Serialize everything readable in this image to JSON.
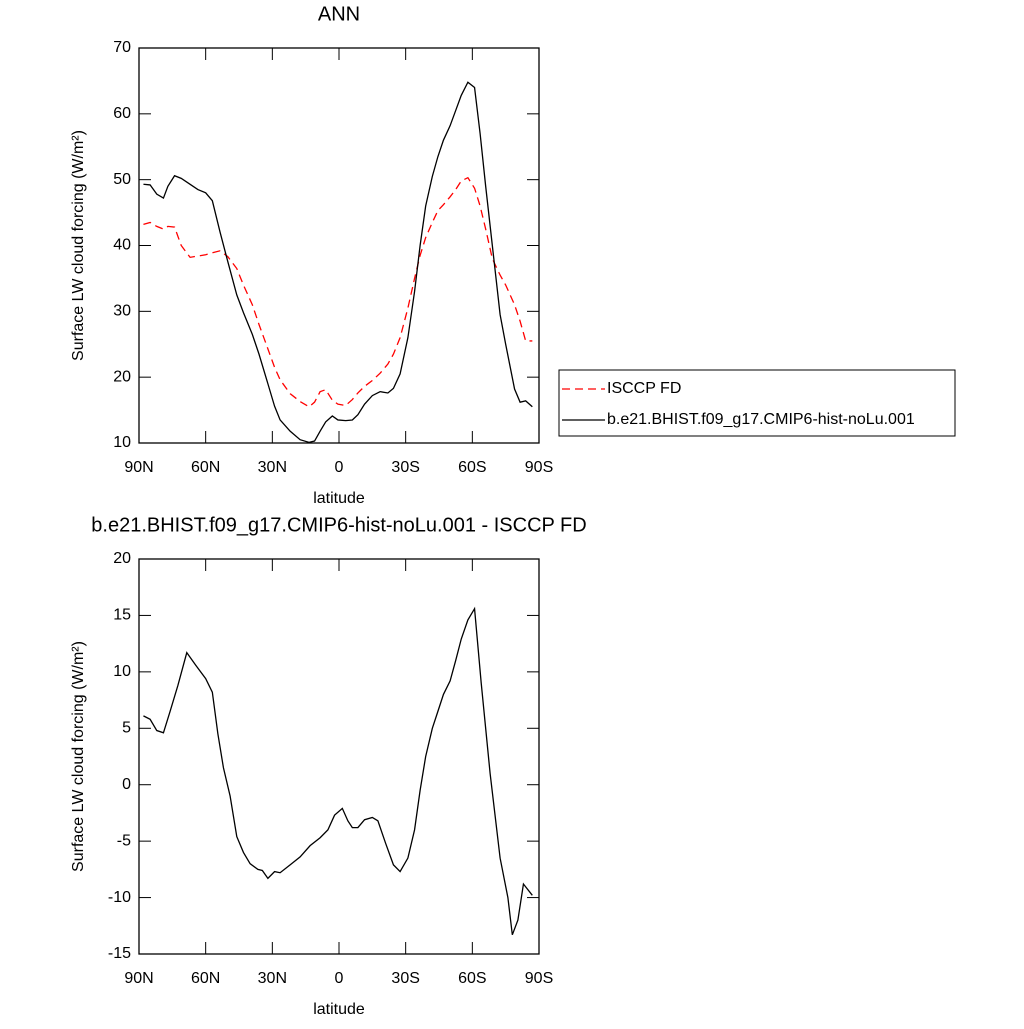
{
  "chart_data": [
    {
      "type": "line",
      "title": "ANN",
      "xlabel": "latitude",
      "ylabel": "Surface LW cloud forcing (W/m²)",
      "xlim": [
        90,
        -90
      ],
      "xticks": [
        {
          "value": 90,
          "label": "90N"
        },
        {
          "value": 60,
          "label": "60N"
        },
        {
          "value": 30,
          "label": "30N"
        },
        0,
        {
          "value": -30,
          "label": "30S"
        },
        {
          "value": -60,
          "label": "60S"
        },
        {
          "value": -90,
          "label": "90S"
        }
      ],
      "ylim": [
        10,
        70
      ],
      "yticks": [
        10,
        20,
        30,
        40,
        50,
        60,
        70
      ],
      "legend": "right",
      "x": [
        88,
        85,
        82,
        79,
        77,
        74,
        71,
        67,
        63.5,
        60,
        57,
        53.5,
        50,
        46,
        43,
        39,
        36,
        32,
        29,
        26.5,
        22,
        17.5,
        13.5,
        11,
        8.5,
        6,
        3,
        0.5,
        -3,
        -6,
        -8.5,
        -11.5,
        -15,
        -18.5,
        -22,
        -24.5,
        -27.5,
        -31,
        -34,
        -36.5,
        -39,
        -42,
        -44.5,
        -47,
        -50,
        -52.5,
        -55,
        -58,
        -61,
        -63.5,
        -66,
        -69,
        -72.5,
        -75,
        -79,
        -81.5,
        -84,
        -87
      ],
      "series": [
        {
          "name": "ISCCP FD",
          "color": "#ff0000",
          "dashed": true,
          "values": [
            43.2,
            43.5,
            42.9,
            42.5,
            42.9,
            42.8,
            40,
            38.2,
            38.4,
            38.6,
            38.9,
            39.2,
            38.3,
            36.5,
            34,
            31,
            28,
            24.3,
            21.5,
            19.6,
            17.5,
            16.3,
            15.5,
            16.2,
            17.8,
            18.1,
            16.5,
            15.9,
            15.7,
            16.6,
            17.6,
            18.6,
            19.5,
            20.6,
            22,
            23.5,
            26,
            30.5,
            35,
            38.5,
            41.2,
            43.5,
            45.3,
            46.2,
            47.4,
            48.5,
            49.8,
            50.3,
            48.7,
            46,
            42.5,
            38,
            35.5,
            34,
            31,
            28.5,
            25.5,
            25.5
          ]
        },
        {
          "name": "b.e21.BHIST.f09_g17.CMIP6-hist-noLu.001",
          "color": "#000000",
          "dashed": false,
          "values": [
            49.3,
            49.2,
            47.8,
            47.2,
            49,
            50.6,
            50.2,
            49.3,
            48.5,
            48,
            46.8,
            42,
            37.5,
            32.5,
            29.8,
            26.5,
            23.5,
            19,
            15.6,
            13.5,
            11.8,
            10.5,
            10.1,
            10.3,
            11.8,
            13.2,
            14.1,
            13.5,
            13.4,
            13.5,
            14.3,
            15.9,
            17.2,
            17.8,
            17.6,
            18.3,
            20.5,
            26,
            33,
            40,
            46,
            50.5,
            53.5,
            56,
            58.2,
            60.5,
            62.8,
            64.8,
            64,
            57,
            49,
            40,
            29.5,
            25,
            18.2,
            16.2,
            16.4,
            15.5
          ]
        }
      ]
    },
    {
      "type": "line",
      "title": "b.e21.BHIST.f09_g17.CMIP6-hist-noLu.001 - ISCCP FD",
      "xlabel": "latitude",
      "ylabel": "Surface LW cloud forcing (W/m²)",
      "xlim": [
        90,
        -90
      ],
      "xticks": [
        {
          "value": 90,
          "label": "90N"
        },
        {
          "value": 60,
          "label": "60N"
        },
        {
          "value": 30,
          "label": "30N"
        },
        0,
        {
          "value": -30,
          "label": "30S"
        },
        {
          "value": -60,
          "label": "60S"
        },
        {
          "value": -90,
          "label": "90S"
        }
      ],
      "ylim": [
        -15,
        20
      ],
      "yticks": [
        -15,
        -10,
        -5,
        0,
        5,
        10,
        15,
        20
      ],
      "x": [
        88,
        85,
        82,
        79,
        76,
        72.5,
        68.5,
        64.5,
        60,
        57,
        54.5,
        52,
        49,
        46,
        43,
        40,
        36.5,
        34.5,
        32,
        29,
        26.5,
        22,
        17.5,
        13,
        8.5,
        5,
        2,
        -1.5,
        -4,
        -6,
        -8.5,
        -11.5,
        -15,
        -17.5,
        -21,
        -24.5,
        -27.5,
        -31,
        -34,
        -36.5,
        -39,
        -42,
        -44.5,
        -47,
        -50,
        -52.5,
        -55,
        -58,
        -61,
        -64,
        -68,
        -72.5,
        -76,
        -78,
        -80.5,
        -83,
        -87
      ],
      "color": "#000000",
      "values": [
        6.1,
        5.8,
        4.8,
        4.6,
        6.5,
        8.8,
        11.7,
        10.6,
        9.4,
        8.2,
        4.5,
        1.5,
        -1,
        -4.6,
        -6,
        -7,
        -7.5,
        -7.6,
        -8.3,
        -7.7,
        -7.8,
        -7.1,
        -6.4,
        -5.4,
        -4.7,
        -4,
        -2.7,
        -2.1,
        -3.2,
        -3.8,
        -3.8,
        -3.1,
        -2.9,
        -3.2,
        -5.2,
        -7.1,
        -7.7,
        -6.5,
        -4,
        -0.5,
        2.5,
        5,
        6.5,
        8,
        9.2,
        11,
        12.9,
        14.6,
        15.6,
        9,
        1,
        -6.5,
        -10,
        -13.3,
        -12,
        -8.8,
        -9.8
      ]
    }
  ]
}
